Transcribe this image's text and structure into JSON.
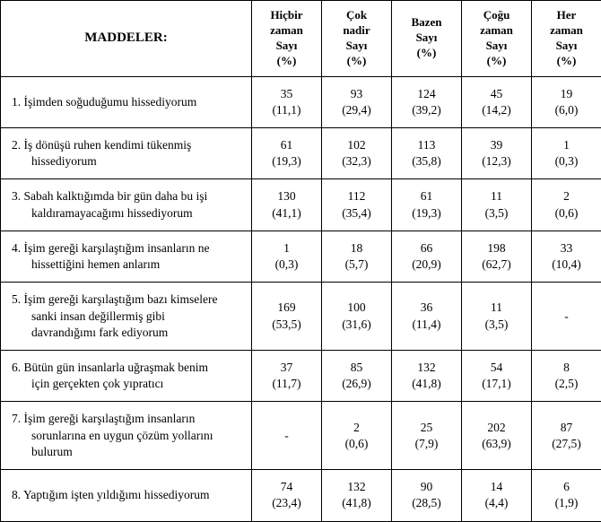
{
  "header": {
    "item_label": "MADDELER:",
    "columns": [
      {
        "line1": "Hiçbir",
        "line2": "zaman",
        "line3": "Sayı",
        "line4": "(%)"
      },
      {
        "line1": "Çok",
        "line2": "nadir",
        "line3": "Sayı",
        "line4": "(%)"
      },
      {
        "line1": "Bazen",
        "line2": "Sayı",
        "line3": "(%)",
        "line4": ""
      },
      {
        "line1": "Çoğu",
        "line2": "zaman",
        "line3": "Sayı",
        "line4": "(%)"
      },
      {
        "line1": "Her",
        "line2": "zaman",
        "line3": "Sayı",
        "line4": "(%)"
      }
    ]
  },
  "rows": [
    {
      "line1": "1. İşimden soğuduğumu hissediyorum",
      "line2": "",
      "line3": "",
      "cells": [
        {
          "count": "35",
          "pct": "(11,1)"
        },
        {
          "count": "93",
          "pct": "(29,4)"
        },
        {
          "count": "124",
          "pct": "(39,2)"
        },
        {
          "count": "45",
          "pct": "(14,2)"
        },
        {
          "count": "19",
          "pct": "(6,0)"
        }
      ]
    },
    {
      "line1": "2. İş dönüşü ruhen kendimi tükenmiş",
      "line2": "hissediyorum",
      "line3": "",
      "cells": [
        {
          "count": "61",
          "pct": "(19,3)"
        },
        {
          "count": "102",
          "pct": "(32,3)"
        },
        {
          "count": "113",
          "pct": "(35,8)"
        },
        {
          "count": "39",
          "pct": "(12,3)"
        },
        {
          "count": "1",
          "pct": "(0,3)"
        }
      ]
    },
    {
      "line1": "3. Sabah kalktığımda bir gün daha bu işi",
      "line2": "kaldıramayacağımı hissediyorum",
      "line3": "",
      "cells": [
        {
          "count": "130",
          "pct": "(41,1)"
        },
        {
          "count": "112",
          "pct": "(35,4)"
        },
        {
          "count": "61",
          "pct": "(19,3)"
        },
        {
          "count": "11",
          "pct": "(3,5)"
        },
        {
          "count": "2",
          "pct": "(0,6)"
        }
      ]
    },
    {
      "line1": "4. İşim gereği karşılaştığım insanların ne",
      "line2": "hissettiğini hemen anlarım",
      "line3": "",
      "cells": [
        {
          "count": "1",
          "pct": "(0,3)"
        },
        {
          "count": "18",
          "pct": "(5,7)"
        },
        {
          "count": "66",
          "pct": "(20,9)"
        },
        {
          "count": "198",
          "pct": "(62,7)"
        },
        {
          "count": "33",
          "pct": "(10,4)"
        }
      ]
    },
    {
      "line1": "5. İşim gereği karşılaştığım bazı kimselere",
      "line2": "sanki insan değillermiş gibi",
      "line3": "davrandığımı fark ediyorum",
      "cells": [
        {
          "count": "169",
          "pct": "(53,5)"
        },
        {
          "count": "100",
          "pct": "(31,6)"
        },
        {
          "count": "36",
          "pct": "(11,4)"
        },
        {
          "count": "11",
          "pct": "(3,5)"
        },
        {
          "count": "-",
          "pct": ""
        }
      ]
    },
    {
      "line1": "6. Bütün gün insanlarla uğraşmak benim",
      "line2": "için gerçekten çok yıpratıcı",
      "line3": "",
      "cells": [
        {
          "count": "37",
          "pct": "(11,7)"
        },
        {
          "count": "85",
          "pct": "(26,9)"
        },
        {
          "count": "132",
          "pct": "(41,8)"
        },
        {
          "count": "54",
          "pct": "(17,1)"
        },
        {
          "count": "8",
          "pct": "(2,5)"
        }
      ]
    },
    {
      "line1": "7. İşim gereği karşılaştığım insanların",
      "line2": "sorunlarına en uygun çözüm yollarını",
      "line3": "bulurum",
      "cells": [
        {
          "count": "-",
          "pct": ""
        },
        {
          "count": "2",
          "pct": "(0,6)"
        },
        {
          "count": "25",
          "pct": "(7,9)"
        },
        {
          "count": "202",
          "pct": "(63,9)"
        },
        {
          "count": "87",
          "pct": "(27,5)"
        }
      ]
    },
    {
      "line1": "8. Yaptığım işten yıldığımı hissediyorum",
      "line2": "",
      "line3": "",
      "cells": [
        {
          "count": "74",
          "pct": "(23,4)"
        },
        {
          "count": "132",
          "pct": "(41,8)"
        },
        {
          "count": "90",
          "pct": "(28,5)"
        },
        {
          "count": "14",
          "pct": "(4,4)"
        },
        {
          "count": "6",
          "pct": "(1,9)"
        }
      ]
    }
  ]
}
